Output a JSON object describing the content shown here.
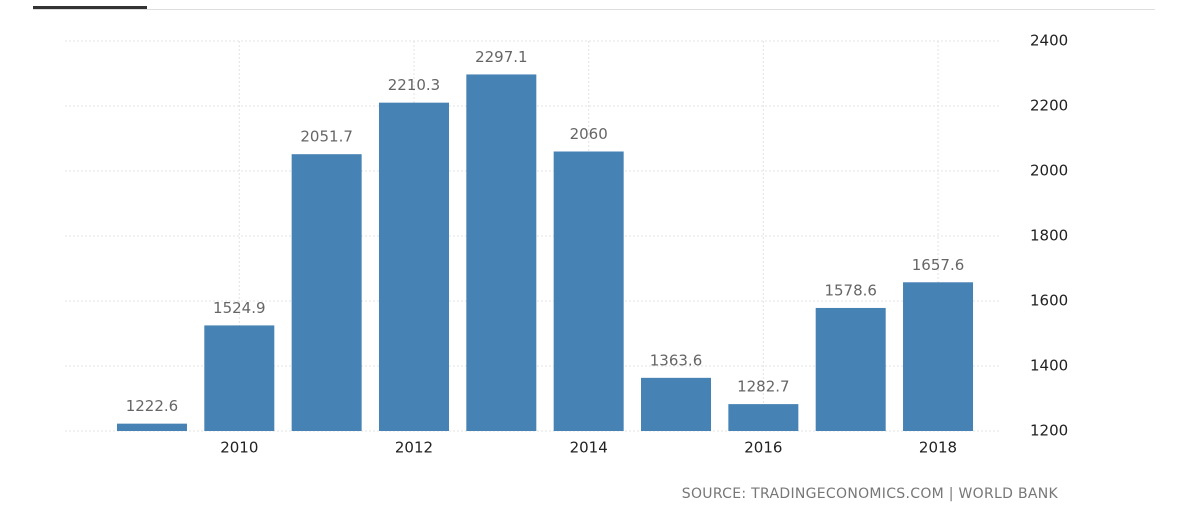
{
  "chart_data": {
    "type": "bar",
    "categories": [
      null,
      "2010",
      null,
      "2012",
      null,
      "2014",
      null,
      "2016",
      null,
      "2018"
    ],
    "values": [
      1222.6,
      1524.9,
      2051.7,
      2210.3,
      2297.1,
      2060,
      1363.6,
      1282.7,
      1578.6,
      1657.6
    ],
    "color": "#4682b4",
    "ylim": [
      1200,
      2400
    ],
    "yticks": [
      1200,
      1400,
      1600,
      1800,
      2000,
      2200,
      2400
    ],
    "grid": true,
    "source": "SOURCE: TRADINGECONOMICS.COM | WORLD BANK"
  }
}
